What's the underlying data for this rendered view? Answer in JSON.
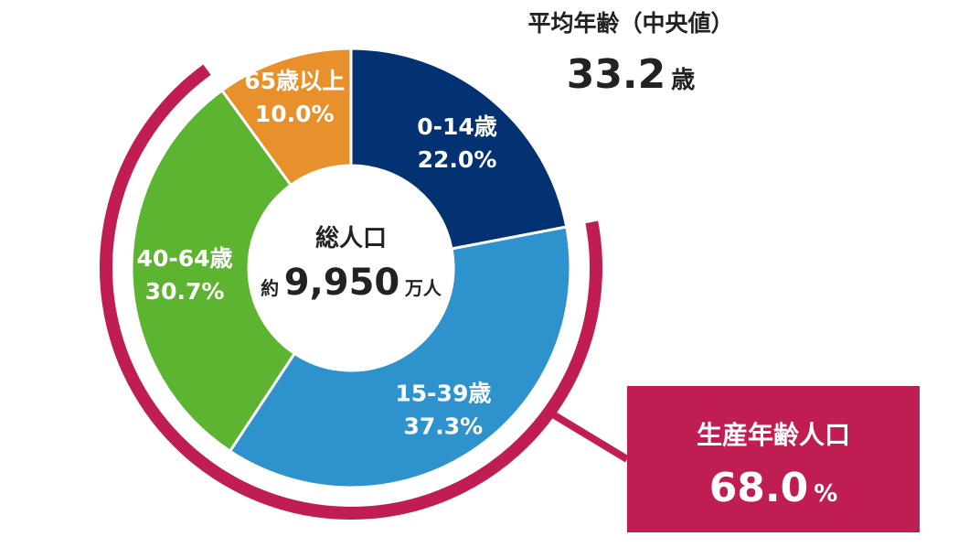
{
  "median": {
    "title": "平均年齢（中央値）",
    "value": "33.2",
    "unit": "歳"
  },
  "center": {
    "title": "総人口",
    "prefix": "約",
    "value": "9,950",
    "unit": "万人"
  },
  "working_age": {
    "title": "生産年齢人口",
    "value": "68.0",
    "unit": "%"
  },
  "colors": {
    "age_0_14": "#023271",
    "age_15_39": "#2e92cc",
    "age_40_64": "#5db431",
    "age_65_plus": "#e8902b",
    "working_age": "#c01e52"
  },
  "chart_data": {
    "type": "pie",
    "categories": [
      "0-14歳",
      "15-39歳",
      "40-64歳",
      "65歳以上"
    ],
    "values": [
      22.0,
      37.3,
      30.7,
      10.0
    ],
    "value_labels": [
      "22.0%",
      "37.3%",
      "30.7%",
      "10.0%"
    ],
    "colors": [
      "#023271",
      "#2e92cc",
      "#5db431",
      "#e8902b"
    ]
  }
}
